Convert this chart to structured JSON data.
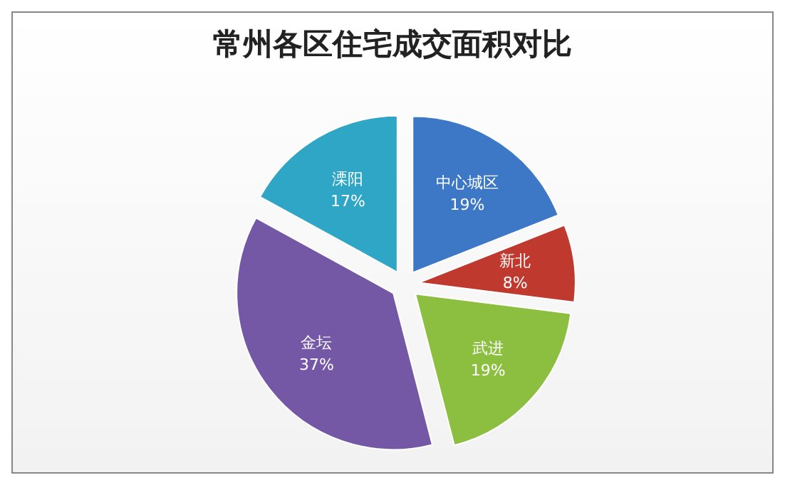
{
  "chart_data": {
    "type": "pie",
    "title": "常州各区住宅成交面积对比",
    "categories": [
      "中心城区",
      "新北",
      "武进",
      "金坛",
      "溧阳"
    ],
    "values": [
      19,
      8,
      19,
      37,
      17
    ],
    "value_labels": [
      "19%",
      "8%",
      "19%",
      "37%",
      "17%"
    ],
    "colors": [
      "#3c78c6",
      "#c0392f",
      "#8cbf3f",
      "#7458a6",
      "#2fa6c6"
    ],
    "legend": false
  }
}
